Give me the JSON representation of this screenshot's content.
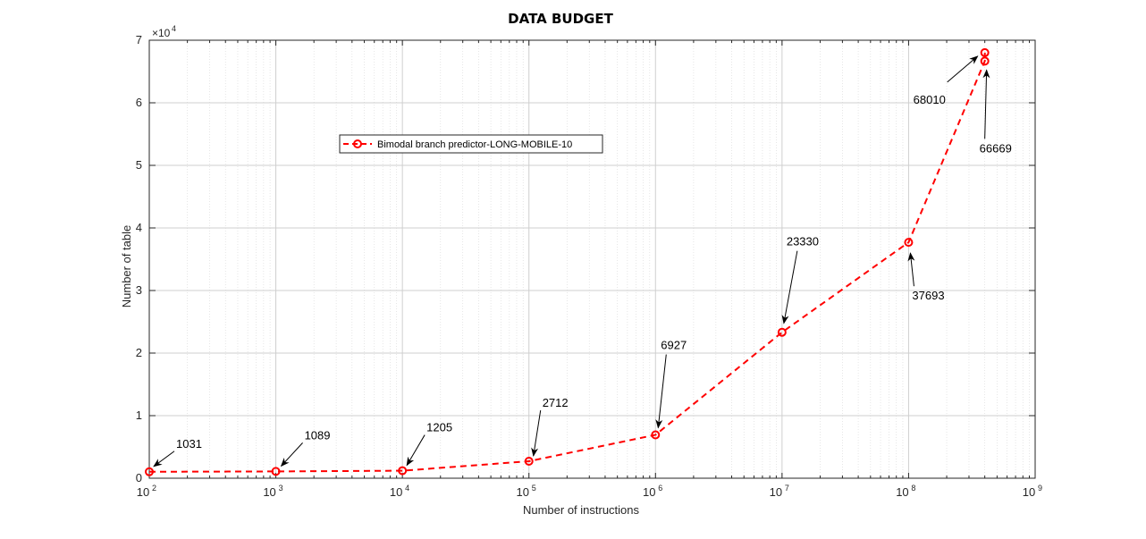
{
  "chart_data": {
    "type": "line",
    "title": "DATA BUDGET",
    "xlabel": "Number of instructions",
    "ylabel": "Number of table",
    "x_scale": "log",
    "xlim": [
      100,
      1000000000
    ],
    "ylim": [
      0,
      70000
    ],
    "y_multiplier_label": "×10",
    "y_multiplier_exponent": "4",
    "x_tick_base": "10",
    "x_ticks": [
      {
        "value": 100,
        "exp": "2"
      },
      {
        "value": 1000,
        "exp": "3"
      },
      {
        "value": 10000,
        "exp": "4"
      },
      {
        "value": 100000,
        "exp": "5"
      },
      {
        "value": 1000000,
        "exp": "6"
      },
      {
        "value": 10000000,
        "exp": "7"
      },
      {
        "value": 100000000,
        "exp": "8"
      },
      {
        "value": 1000000000,
        "exp": "9"
      }
    ],
    "y_ticks": [
      {
        "value": 0,
        "label": "0"
      },
      {
        "value": 10000,
        "label": "1"
      },
      {
        "value": 20000,
        "label": "2"
      },
      {
        "value": 30000,
        "label": "3"
      },
      {
        "value": 40000,
        "label": "4"
      },
      {
        "value": 50000,
        "label": "5"
      },
      {
        "value": 60000,
        "label": "6"
      },
      {
        "value": 70000,
        "label": "7"
      }
    ],
    "grid": true,
    "legend_position": "upper-left inside",
    "series": [
      {
        "name": "Bimodal branch predictor-LONG-MOBILE-10",
        "color": "#ff0000",
        "line_style": "dashed",
        "marker": "circle",
        "points": [
          {
            "x": 100,
            "y": 1031
          },
          {
            "x": 1000,
            "y": 1089
          },
          {
            "x": 10000,
            "y": 1205
          },
          {
            "x": 100000,
            "y": 2712
          },
          {
            "x": 1000000,
            "y": 6927
          },
          {
            "x": 10000000,
            "y": 23330
          },
          {
            "x": 100000000,
            "y": 37693
          },
          {
            "x": 400000000,
            "y": 66669
          },
          {
            "x": 400000000,
            "y": 68010
          }
        ]
      }
    ],
    "annotations": [
      {
        "text": "1031",
        "x": 100,
        "y": 1031
      },
      {
        "text": "1089",
        "x": 1000,
        "y": 1089
      },
      {
        "text": "1205",
        "x": 10000,
        "y": 1205
      },
      {
        "text": "2712",
        "x": 100000,
        "y": 2712
      },
      {
        "text": "6927",
        "x": 1000000,
        "y": 6927
      },
      {
        "text": "23330",
        "x": 10000000,
        "y": 23330
      },
      {
        "text": "37693",
        "x": 100000000,
        "y": 37693
      },
      {
        "text": "68010",
        "x": 400000000,
        "y": 68010
      },
      {
        "text": "66669",
        "x": 400000000,
        "y": 66669
      }
    ]
  }
}
